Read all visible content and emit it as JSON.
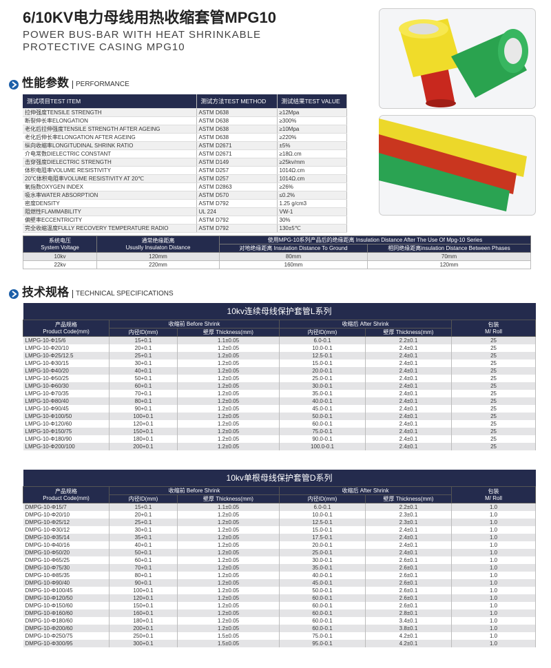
{
  "header": {
    "title": "6/10KV电力母线用热收缩套管MPG10",
    "subtitle_lines": [
      "POWER BUS-BAR WITH HEAT SHRINKABLE",
      "PROTECTIVE CASING MPG10"
    ]
  },
  "performance": {
    "heading_cn": "性能参数",
    "heading_en": "PERFORMANCE",
    "columns": [
      "测试项目TEST ITEM",
      "测试方法TEST METHOD",
      "测试结果TEST VALUE"
    ],
    "rows": [
      [
        "拉伸强度TENSILE STRENGTH",
        "ASTM D638",
        "≥12Mpa"
      ],
      [
        "断裂伸长率ELONGATION",
        "ASTM D638",
        "≥300%"
      ],
      [
        "老化后拉伸强度TENSILE STRENGTH AFTER AGEING",
        "ASTM D638",
        "≥10Mpa"
      ],
      [
        "老化后伸长率ELONGATION AFTER AGEING",
        "ASTM D638",
        "≥220%"
      ],
      [
        "纵向收缩率LONGITUDINAL SHRINK RATIO",
        "ASTM D2671",
        "±5%"
      ],
      [
        "介电常数DIELECTRIC CONSTANT",
        "ASTM D2671",
        "≥18Ω.cm"
      ],
      [
        "击穿强度DIELECTRIC STRENGTH",
        "ASTM D149",
        "≥25kv/mm"
      ],
      [
        "体积电阻率VOLUME RESISTIVITY",
        "ASTM D257",
        "1014Ω.cm"
      ],
      [
        "20℃体积电阻率VOLUME RESISTIVITY AT 20℃",
        "ASTM D257",
        "1014Ω.cm"
      ],
      [
        "氧指数OXYGEN INDEX",
        "ASTM D2863",
        "≥26%"
      ],
      [
        "吸水率WATER ABSORPTION",
        "ASTM D570",
        "≤0.2%"
      ],
      [
        "密度DENSITY",
        "ASTM D792",
        "1.25 g/cm3"
      ],
      [
        "阻燃性FLAMMABILITY",
        "UL 224",
        "VW-1"
      ],
      [
        "偏壁率ECCENTRICITY",
        "ASTM D792",
        "30%"
      ],
      [
        "完全收缩温度FULLY RECOVERY TEMPERATURE RADIO",
        "ASTM D792",
        "130±5℃"
      ]
    ]
  },
  "insulation": {
    "header": {
      "voltage_cn": "系统电压",
      "voltage_en": "System Voltage",
      "usual_cn": "通常绝缘距离",
      "usual_en": "Ususlly Insulaton Distance",
      "after": "使用MPG-10系列产品后的绝缘距离 Insulation Distance After The Use Of Mpg-10 Series",
      "to_ground": "对地绝缘距离 Insulation Distance To Ground",
      "between_phases": "相同绝缘距离insulation Distance Between Phases"
    },
    "rows": [
      [
        "10kv",
        "120mm",
        "80mm",
        "70mm"
      ],
      [
        "22kv",
        "220mm",
        "160mm",
        "120mm"
      ]
    ]
  },
  "specs": {
    "heading_cn": "技术规格",
    "heading_en": "TECHNICAL SPECIFICATIONS",
    "tables": [
      {
        "title": "10kv连续母线保护套管L系列",
        "code_cn": "产品规格",
        "code_en": "Product Code(mm)",
        "before": "收缩前 Before Shrink",
        "after": "收缩后 After Shrink",
        "pack_cn": "包装",
        "pack_en": "M/ Roll",
        "sub": [
          "内径ID(mm)",
          "壁厚 Thickness(mm)",
          "内径ID(mm)",
          "壁厚 Thickness(mm)"
        ],
        "rows": [
          [
            "LMPG-10-Φ15/6",
            "15+0.1",
            "1.1±0.05",
            "6.0-0.1",
            "2.2±0.1",
            "25"
          ],
          [
            "LMPG-10-Φ20/10",
            "20+0.1",
            "1.2±0.05",
            "10.0-0.1",
            "2.4±0.1",
            "25"
          ],
          [
            "LMPG-10-Φ25/12.5",
            "25+0.1",
            "1.2±0.05",
            "12.5-0.1",
            "2.4±0.1",
            "25"
          ],
          [
            "LMPG-10-Φ30/15",
            "30+0.1",
            "1.2±0.05",
            "15.0-0.1",
            "2.4±0.1",
            "25"
          ],
          [
            "LMPG-10-Φ40/20",
            "40+0.1",
            "1.2±0.05",
            "20.0-0.1",
            "2.4±0.1",
            "25"
          ],
          [
            "LMPG-10-Φ50/25",
            "50+0.1",
            "1.2±0.05",
            "25.0-0.1",
            "2.4±0.1",
            "25"
          ],
          [
            "LMPG-10-Φ60/30",
            "60+0.1",
            "1.2±0.05",
            "30.0-0.1",
            "2.4±0.1",
            "25"
          ],
          [
            "LMPG-10-Φ70/35",
            "70+0.1",
            "1.2±0.05",
            "35.0-0.1",
            "2.4±0.1",
            "25"
          ],
          [
            "LMPG-10-Φ80/40",
            "80+0.1",
            "1.2±0.05",
            "40.0-0.1",
            "2.4±0.1",
            "25"
          ],
          [
            "LMPG-10-Φ90/45",
            "90+0.1",
            "1.2±0.05",
            "45.0-0.1",
            "2.4±0.1",
            "25"
          ],
          [
            "LMPG-10-Φ100/50",
            "100+0.1",
            "1.2±0.05",
            "50.0-0.1",
            "2.4±0.1",
            "25"
          ],
          [
            "LMPG-10-Φ120/60",
            "120+0.1",
            "1.2±0.05",
            "60.0-0.1",
            "2.4±0.1",
            "25"
          ],
          [
            "LMPG-10-Φ150/75",
            "150+0.1",
            "1.2±0.05",
            "75.0-0.1",
            "2.4±0.1",
            "25"
          ],
          [
            "LMPG-10-Φ180/90",
            "180+0.1",
            "1.2±0.05",
            "90.0-0.1",
            "2.4±0.1",
            "25"
          ],
          [
            "LMPG-10-Φ200/100",
            "200+0.1",
            "1.2±0.05",
            "100.0-0.1",
            "2.4±0.1",
            "25"
          ]
        ]
      },
      {
        "title": "10kv单根母线保护套管D系列",
        "code_cn": "产品规格",
        "code_en": "Product Code(mm)",
        "before": "收缩前 Before Shrink",
        "after": "收缩后 After Shrink",
        "pack_cn": "包装",
        "pack_en": "M/ Roll",
        "sub": [
          "内径ID(mm)",
          "壁厚 Thickness(mm)",
          "内径ID(mm)",
          "壁厚 Thickness(mm)"
        ],
        "rows": [
          [
            "DMPG-10-Φ15/7",
            "15+0.1",
            "1.1±0.05",
            "6.0-0.1",
            "2.2±0.1",
            "1.0"
          ],
          [
            "DMPG-10-Φ20/10",
            "20+0.1",
            "1.2±0.05",
            "10.0-0.1",
            "2.3±0.1",
            "1.0"
          ],
          [
            "DMPG-10-Φ25/12",
            "25+0.1",
            "1.2±0.05",
            "12.5-0.1",
            "2.3±0.1",
            "1.0"
          ],
          [
            "DMPG-10-Φ30/12",
            "30+0.1",
            "1.2±0.05",
            "15.0-0.1",
            "2.4±0.1",
            "1.0"
          ],
          [
            "DMPG-10-Φ35/14",
            "35+0.1",
            "1.2±0.05",
            "17.5-0.1",
            "2.4±0.1",
            "1.0"
          ],
          [
            "DMPG-10-Φ40/16",
            "40+0.1",
            "1.2±0.05",
            "20.0-0.1",
            "2.4±0.1",
            "1.0"
          ],
          [
            "DMPG-10-Φ50/20",
            "50+0.1",
            "1.2±0.05",
            "25.0-0.1",
            "2.4±0.1",
            "1.0"
          ],
          [
            "DMPG-10-Φ65/25",
            "60+0.1",
            "1.2±0.05",
            "30.0-0.1",
            "2.6±0.1",
            "1.0"
          ],
          [
            "DMPG-10-Φ75/30",
            "70+0.1",
            "1.2±0.05",
            "35.0-0.1",
            "2.6±0.1",
            "1.0"
          ],
          [
            "DMPG-10-Φ85/35",
            "80+0.1",
            "1.2±0.05",
            "40.0-0.1",
            "2.6±0.1",
            "1.0"
          ],
          [
            "DMPG-10-Φ90/40",
            "90+0.1",
            "1.2±0.05",
            "45.0-0.1",
            "2.6±0.1",
            "1.0"
          ],
          [
            "DMPG-10-Φ100/45",
            "100+0.1",
            "1.2±0.05",
            "50.0-0.1",
            "2.6±0.1",
            "1.0"
          ],
          [
            "DMPG-10-Φ120/50",
            "120+0.1",
            "1.2±0.05",
            "60.0-0.1",
            "2.6±0.1",
            "1.0"
          ],
          [
            "DMPG-10-Φ150/60",
            "150+0.1",
            "1.2±0.05",
            "60.0-0.1",
            "2.6±0.1",
            "1.0"
          ],
          [
            "DMPG-10-Φ160/60",
            "160+0.1",
            "1.2±0.05",
            "60.0-0.1",
            "2.8±0.1",
            "1.0"
          ],
          [
            "DMPG-10-Φ180/60",
            "180+0.1",
            "1.2±0.05",
            "60.0-0.1",
            "3.4±0.1",
            "1.0"
          ],
          [
            "DMPG-10-Φ200/60",
            "200+0.1",
            "1.2±0.05",
            "60.0-0.1",
            "3.8±0.1",
            "1.0"
          ],
          [
            "DMPG-10-Φ250/75",
            "250+0.1",
            "1.5±0.05",
            "75.0-0.1",
            "4.2±0.1",
            "1.0"
          ],
          [
            "DMPG-10-Φ300/95",
            "300+0.1",
            "1.5±0.05",
            "95.0-0.1",
            "4.2±0.1",
            "1.0"
          ]
        ]
      }
    ]
  }
}
